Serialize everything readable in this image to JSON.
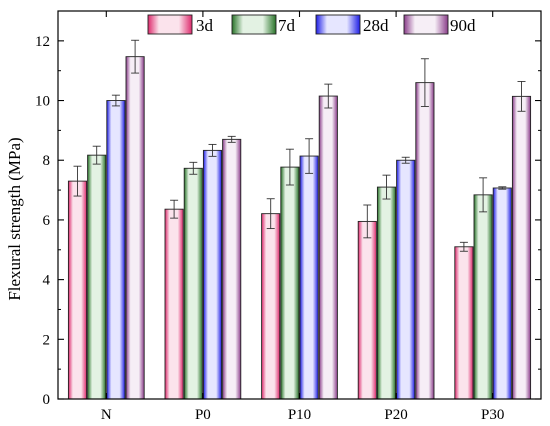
{
  "chart_data": {
    "type": "bar",
    "title": "",
    "xlabel": "",
    "ylabel": "Flexural strength (MPa)",
    "ylim": [
      0,
      13
    ],
    "yticks": [
      0,
      2,
      4,
      6,
      8,
      10,
      12
    ],
    "categories": [
      "N",
      "P0",
      "P10",
      "P20",
      "P30"
    ],
    "legend_position": "top",
    "series": [
      {
        "name": "3d",
        "colors": {
          "light": "#fbe3ec",
          "dark": "#dd2a6c"
        },
        "values": [
          7.3,
          6.36,
          6.21,
          5.95,
          5.1
        ],
        "errors": [
          0.5,
          0.3,
          0.5,
          0.55,
          0.15
        ]
      },
      {
        "name": "7d",
        "colors": {
          "light": "#e3f2e3",
          "dark": "#287328"
        },
        "values": [
          8.17,
          7.73,
          7.77,
          7.1,
          6.84
        ],
        "errors": [
          0.3,
          0.2,
          0.6,
          0.4,
          0.57
        ]
      },
      {
        "name": "28d",
        "colors": {
          "light": "#e6e6ff",
          "dark": "#1e1ee6"
        },
        "values": [
          10.0,
          8.33,
          8.14,
          8.0,
          7.07
        ],
        "errors": [
          0.18,
          0.2,
          0.58,
          0.1,
          0.04
        ]
      },
      {
        "name": "90d",
        "colors": {
          "light": "#f6eef6",
          "dark": "#8a3d8a"
        },
        "values": [
          11.47,
          8.7,
          10.15,
          10.6,
          10.14
        ],
        "errors": [
          0.55,
          0.1,
          0.4,
          0.8,
          0.5
        ]
      }
    ]
  }
}
